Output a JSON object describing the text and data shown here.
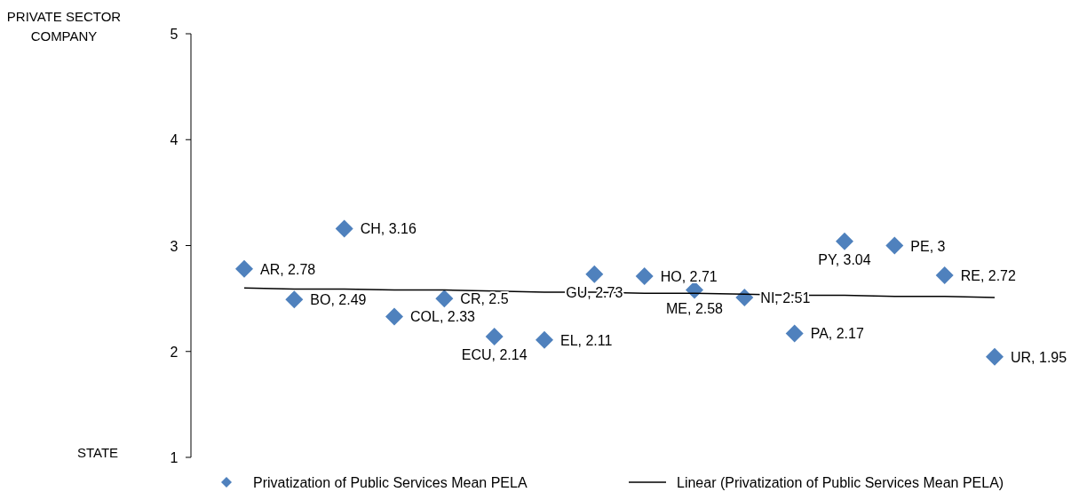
{
  "chart_data": {
    "type": "scatter",
    "categories": [
      null,
      null,
      null,
      null,
      null,
      null,
      null,
      null,
      null,
      null,
      null,
      null,
      null,
      null,
      null,
      null
    ],
    "series": [
      {
        "name": "Privatization of Public Services Mean PELA",
        "color": "#4f81bd",
        "marker": "diamond",
        "values": [
          2.78,
          2.49,
          3.16,
          2.33,
          2.5,
          2.14,
          2.11,
          2.73,
          2.71,
          2.58,
          2.51,
          2.17,
          3.04,
          3,
          2.72,
          1.95
        ],
        "value_labels": [
          "AR, 2.78",
          "BO, 2.49",
          "CH, 3.16",
          "COL, 2.33",
          "CR, 2.5",
          "ECU, 2.14",
          "EL, 2.11",
          "GU, 2.73",
          "HO, 2.71",
          "ME, 2.58",
          "NI, 2.51",
          "PA, 2.17",
          "PY, 3.04",
          "PE, 3",
          "RE, 2.72",
          "UR, 1.95"
        ]
      },
      {
        "name": "Linear (Privatization of Public Services Mean PELA)",
        "type": "line",
        "color": "#000000",
        "line_style": "solid",
        "marker": "none",
        "values": [
          2.6,
          2.59,
          2.59,
          2.58,
          2.58,
          2.57,
          2.56,
          2.56,
          2.55,
          2.55,
          2.54,
          2.53,
          2.53,
          2.52,
          2.52,
          2.51
        ]
      }
    ],
    "ylim": [
      1,
      5
    ],
    "yticks": [
      1,
      2,
      3,
      4,
      5
    ],
    "grid": false,
    "legend": "bottom",
    "tick_labels": "y",
    "annotations": [
      "PRIVATE SECTOR COMPANY",
      "STATE"
    ]
  }
}
